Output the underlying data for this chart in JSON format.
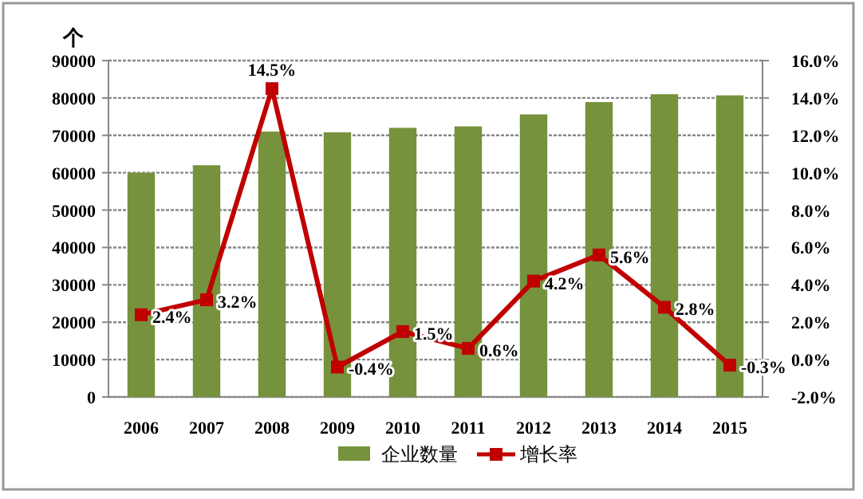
{
  "chart_data": {
    "type": "bar",
    "ylabel": "个",
    "categories": [
      "2006",
      "2007",
      "2008",
      "2009",
      "2010",
      "2011",
      "2012",
      "2013",
      "2014",
      "2015"
    ],
    "series": [
      {
        "name": "企业数量",
        "color": "#76923c",
        "values": [
          60000,
          62000,
          71000,
          70800,
          72000,
          72400,
          75600,
          78900,
          81000,
          80700
        ]
      },
      {
        "name": "增长率",
        "type": "line",
        "axis": "y2",
        "color": "#c00000",
        "marker": "square",
        "values": [
          2.4,
          3.2,
          14.5,
          -0.4,
          1.5,
          0.6,
          4.2,
          5.6,
          2.8,
          -0.3
        ],
        "value_labels": [
          "2.4%",
          "3.2%",
          "14.5%",
          "-0.4%",
          "1.5%",
          "0.6%",
          "4.2%",
          "5.6%",
          "2.8%",
          "-0.3%"
        ]
      }
    ],
    "ylim": [
      0,
      90000
    ],
    "yticks": [
      0,
      10000,
      20000,
      30000,
      40000,
      50000,
      60000,
      70000,
      80000,
      90000
    ],
    "y2lim": [
      -2,
      16
    ],
    "y2ticks": [
      {
        "value": -2,
        "label": "-2.0%"
      },
      {
        "value": 0,
        "label": "0.0%"
      },
      {
        "value": 2,
        "label": "2.0%"
      },
      {
        "value": 4,
        "label": "4.0%"
      },
      {
        "value": 6,
        "label": "6.0%"
      },
      {
        "value": 8,
        "label": "8.0%"
      },
      {
        "value": 10,
        "label": "10.0%"
      },
      {
        "value": 12,
        "label": "12.0%"
      },
      {
        "value": 14,
        "label": "14.0%"
      },
      {
        "value": 16,
        "label": "16.0%"
      }
    ],
    "grid": "y",
    "legend": "bottom"
  }
}
